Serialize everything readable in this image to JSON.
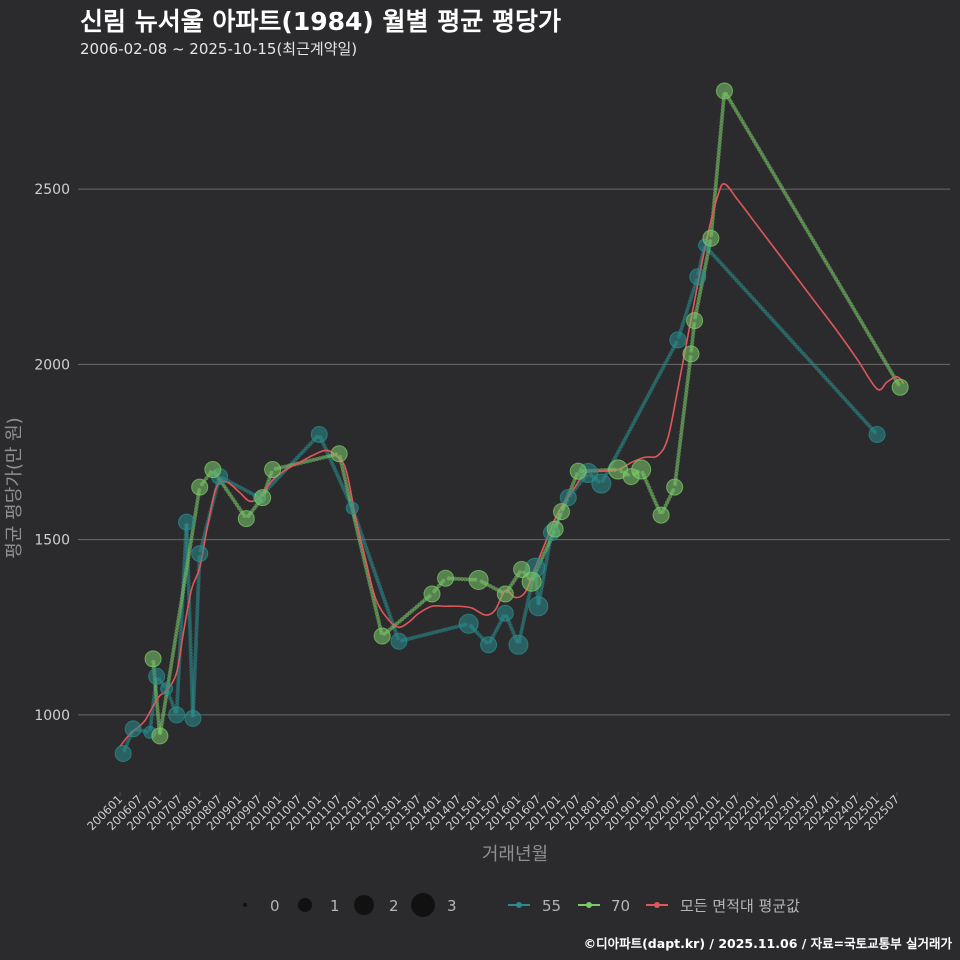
{
  "header": {
    "title": "신림 뉴서울 아파트(1984) 월별 평균 평당가",
    "subtitle": "2006-02-08 ~ 2025-10-15(최근계약일)"
  },
  "caption": "©디아파트(dapt.kr) / 2025.11.06 / 자료=국토교통부 실거래가",
  "chart_data": {
    "type": "line",
    "title": "신림 뉴서울 아파트(1984) 월별 평균 평당가",
    "xlabel": "거래년월",
    "ylabel": "평균 평당가(만 원)",
    "ylim": [
      780,
      2840
    ],
    "yticks": [
      1000,
      1500,
      2000,
      2500
    ],
    "grid": true,
    "colors": {
      "s55": "#2a8c8c",
      "s70": "#7cc96a",
      "avg": "#e0575b"
    },
    "x_tick_labels": [
      "200601",
      "200607",
      "200701",
      "200707",
      "200801",
      "200807",
      "200901",
      "200907",
      "201001",
      "201007",
      "201101",
      "201107",
      "201201",
      "201207",
      "201301",
      "201307",
      "201401",
      "201407",
      "201501",
      "201507",
      "201601",
      "201607",
      "201701",
      "201707",
      "201801",
      "201807",
      "201901",
      "201907",
      "202001",
      "202007",
      "202101",
      "202107",
      "202201",
      "202207",
      "202301",
      "202307",
      "202401",
      "202407",
      "202501",
      "202507"
    ],
    "series": [
      {
        "name": "55",
        "points": [
          {
            "x": 2006.08,
            "y": 890,
            "n": 2
          },
          {
            "x": 2006.33,
            "y": 960,
            "n": 2
          },
          {
            "x": 2006.75,
            "y": 950,
            "n": 1
          },
          {
            "x": 2006.92,
            "y": 1110,
            "n": 2
          },
          {
            "x": 2007.17,
            "y": 1075,
            "n": 1
          },
          {
            "x": 2007.42,
            "y": 1000,
            "n": 2
          },
          {
            "x": 2007.67,
            "y": 1550,
            "n": 2
          },
          {
            "x": 2007.83,
            "y": 990,
            "n": 2
          },
          {
            "x": 2008.0,
            "y": 1460,
            "n": 2
          },
          {
            "x": 2008.5,
            "y": 1680,
            "n": 2
          },
          {
            "x": 2009.5,
            "y": 1620,
            "n": 1
          },
          {
            "x": 2011.0,
            "y": 1800,
            "n": 2
          },
          {
            "x": 2011.83,
            "y": 1590,
            "n": 1
          },
          {
            "x": 2013.0,
            "y": 1210,
            "n": 2
          },
          {
            "x": 2014.75,
            "y": 1260,
            "n": 3
          },
          {
            "x": 2015.25,
            "y": 1200,
            "n": 2
          },
          {
            "x": 2015.67,
            "y": 1290,
            "n": 2
          },
          {
            "x": 2016.0,
            "y": 1200,
            "n": 3
          },
          {
            "x": 2016.42,
            "y": 1420,
            "n": 3
          },
          {
            "x": 2016.5,
            "y": 1310,
            "n": 3
          },
          {
            "x": 2016.83,
            "y": 1520,
            "n": 2
          },
          {
            "x": 2017.25,
            "y": 1620,
            "n": 2
          },
          {
            "x": 2017.75,
            "y": 1690,
            "n": 3
          },
          {
            "x": 2018.08,
            "y": 1660,
            "n": 3
          },
          {
            "x": 2020.0,
            "y": 2070,
            "n": 2
          },
          {
            "x": 2020.5,
            "y": 2250,
            "n": 2
          },
          {
            "x": 2020.67,
            "y": 2340,
            "n": 1
          },
          {
            "x": 2025.0,
            "y": 1800,
            "n": 2
          }
        ]
      },
      {
        "name": "70",
        "points": [
          {
            "x": 2006.83,
            "y": 1160,
            "n": 2
          },
          {
            "x": 2007.0,
            "y": 940,
            "n": 2
          },
          {
            "x": 2008.0,
            "y": 1650,
            "n": 2
          },
          {
            "x": 2008.33,
            "y": 1700,
            "n": 2
          },
          {
            "x": 2009.17,
            "y": 1560,
            "n": 2
          },
          {
            "x": 2009.58,
            "y": 1620,
            "n": 2
          },
          {
            "x": 2009.83,
            "y": 1700,
            "n": 2
          },
          {
            "x": 2011.5,
            "y": 1745,
            "n": 2
          },
          {
            "x": 2012.58,
            "y": 1225,
            "n": 2
          },
          {
            "x": 2013.83,
            "y": 1345,
            "n": 2
          },
          {
            "x": 2014.17,
            "y": 1390,
            "n": 2
          },
          {
            "x": 2015.0,
            "y": 1385,
            "n": 3
          },
          {
            "x": 2015.67,
            "y": 1345,
            "n": 2
          },
          {
            "x": 2016.08,
            "y": 1415,
            "n": 2
          },
          {
            "x": 2016.33,
            "y": 1380,
            "n": 3
          },
          {
            "x": 2016.92,
            "y": 1530,
            "n": 2
          },
          {
            "x": 2017.08,
            "y": 1580,
            "n": 2
          },
          {
            "x": 2017.5,
            "y": 1695,
            "n": 2
          },
          {
            "x": 2018.5,
            "y": 1700,
            "n": 3
          },
          {
            "x": 2018.83,
            "y": 1680,
            "n": 2
          },
          {
            "x": 2019.08,
            "y": 1700,
            "n": 3
          },
          {
            "x": 2019.58,
            "y": 1570,
            "n": 2
          },
          {
            "x": 2019.92,
            "y": 1650,
            "n": 2
          },
          {
            "x": 2020.33,
            "y": 2030,
            "n": 2
          },
          {
            "x": 2020.42,
            "y": 2125,
            "n": 2
          },
          {
            "x": 2020.83,
            "y": 2360,
            "n": 2
          },
          {
            "x": 2021.17,
            "y": 2780,
            "n": 2
          },
          {
            "x": 2025.58,
            "y": 1935,
            "n": 2
          }
        ]
      },
      {
        "name": "모든 면적대 평균값",
        "points": [
          [
            2006.0,
            910
          ],
          [
            2006.25,
            945
          ],
          [
            2006.6,
            980
          ],
          [
            2006.83,
            1025
          ],
          [
            2007.0,
            1055
          ],
          [
            2007.17,
            1070
          ],
          [
            2007.42,
            1120
          ],
          [
            2007.6,
            1240
          ],
          [
            2007.8,
            1360
          ],
          [
            2008.0,
            1420
          ],
          [
            2008.2,
            1540
          ],
          [
            2008.42,
            1650
          ],
          [
            2008.67,
            1665
          ],
          [
            2009.0,
            1635
          ],
          [
            2009.25,
            1610
          ],
          [
            2009.5,
            1620
          ],
          [
            2009.83,
            1670
          ],
          [
            2010.17,
            1700
          ],
          [
            2010.5,
            1720
          ],
          [
            2010.83,
            1740
          ],
          [
            2011.17,
            1755
          ],
          [
            2011.42,
            1740
          ],
          [
            2011.67,
            1700
          ],
          [
            2011.92,
            1560
          ],
          [
            2012.17,
            1440
          ],
          [
            2012.42,
            1330
          ],
          [
            2012.75,
            1270
          ],
          [
            2013.0,
            1250
          ],
          [
            2013.25,
            1265
          ],
          [
            2013.5,
            1290
          ],
          [
            2013.83,
            1310
          ],
          [
            2014.17,
            1310
          ],
          [
            2014.5,
            1310
          ],
          [
            2014.83,
            1305
          ],
          [
            2015.17,
            1285
          ],
          [
            2015.42,
            1300
          ],
          [
            2015.67,
            1355
          ],
          [
            2015.92,
            1335
          ],
          [
            2016.17,
            1350
          ],
          [
            2016.42,
            1420
          ],
          [
            2016.67,
            1490
          ],
          [
            2016.92,
            1560
          ],
          [
            2017.17,
            1610
          ],
          [
            2017.42,
            1650
          ],
          [
            2017.67,
            1690
          ],
          [
            2018.0,
            1695
          ],
          [
            2018.5,
            1700
          ],
          [
            2018.83,
            1720
          ],
          [
            2019.17,
            1735
          ],
          [
            2019.5,
            1740
          ],
          [
            2019.75,
            1790
          ],
          [
            2020.0,
            1930
          ],
          [
            2020.25,
            2080
          ],
          [
            2020.5,
            2230
          ],
          [
            2020.75,
            2370
          ],
          [
            2021.0,
            2480
          ],
          [
            2021.17,
            2515
          ],
          [
            2021.5,
            2470
          ],
          [
            2022.0,
            2395
          ],
          [
            2022.5,
            2320
          ],
          [
            2023.0,
            2245
          ],
          [
            2023.5,
            2170
          ],
          [
            2024.0,
            2095
          ],
          [
            2024.5,
            2015
          ],
          [
            2025.0,
            1930
          ],
          [
            2025.25,
            1950
          ],
          [
            2025.5,
            1965
          ],
          [
            2025.67,
            1945
          ]
        ]
      }
    ]
  },
  "legend": {
    "size_labels": [
      "0",
      "1",
      "2",
      "3"
    ],
    "s55_label": "55",
    "s70_label": "70",
    "avg_label": "모든 면적대 평균값"
  }
}
